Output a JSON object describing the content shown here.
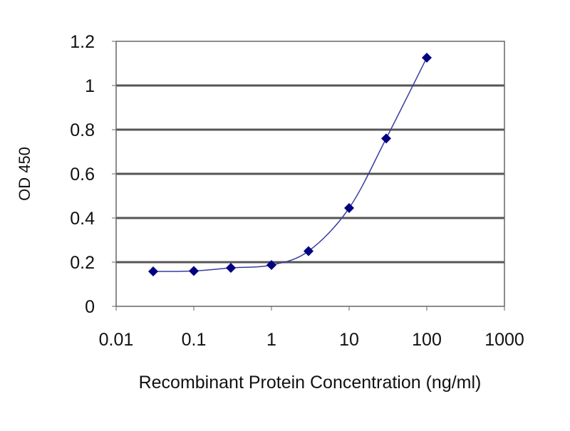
{
  "chart_data": {
    "type": "line",
    "title": "",
    "xlabel": "Recombinant Protein Concentration (ng/ml)",
    "ylabel": "OD 450",
    "x_scale": "log",
    "xlim": [
      0.01,
      1000
    ],
    "ylim": [
      0,
      1.2
    ],
    "x_ticks": [
      "0.01",
      "0.1",
      "1",
      "10",
      "100",
      "1000"
    ],
    "y_ticks": [
      "0",
      "0.2",
      "0.4",
      "0.6",
      "0.8",
      "1",
      "1.2"
    ],
    "grid": "horizontal",
    "series": [
      {
        "x": [
          0.03,
          0.1,
          0.3,
          1,
          3,
          10,
          30,
          100
        ],
        "y": [
          0.158,
          0.16,
          0.174,
          0.187,
          0.25,
          0.445,
          0.76,
          1.126
        ]
      }
    ],
    "colors": {
      "series": "#000080",
      "line": "#3a3aa0",
      "grid": "#555555"
    }
  }
}
